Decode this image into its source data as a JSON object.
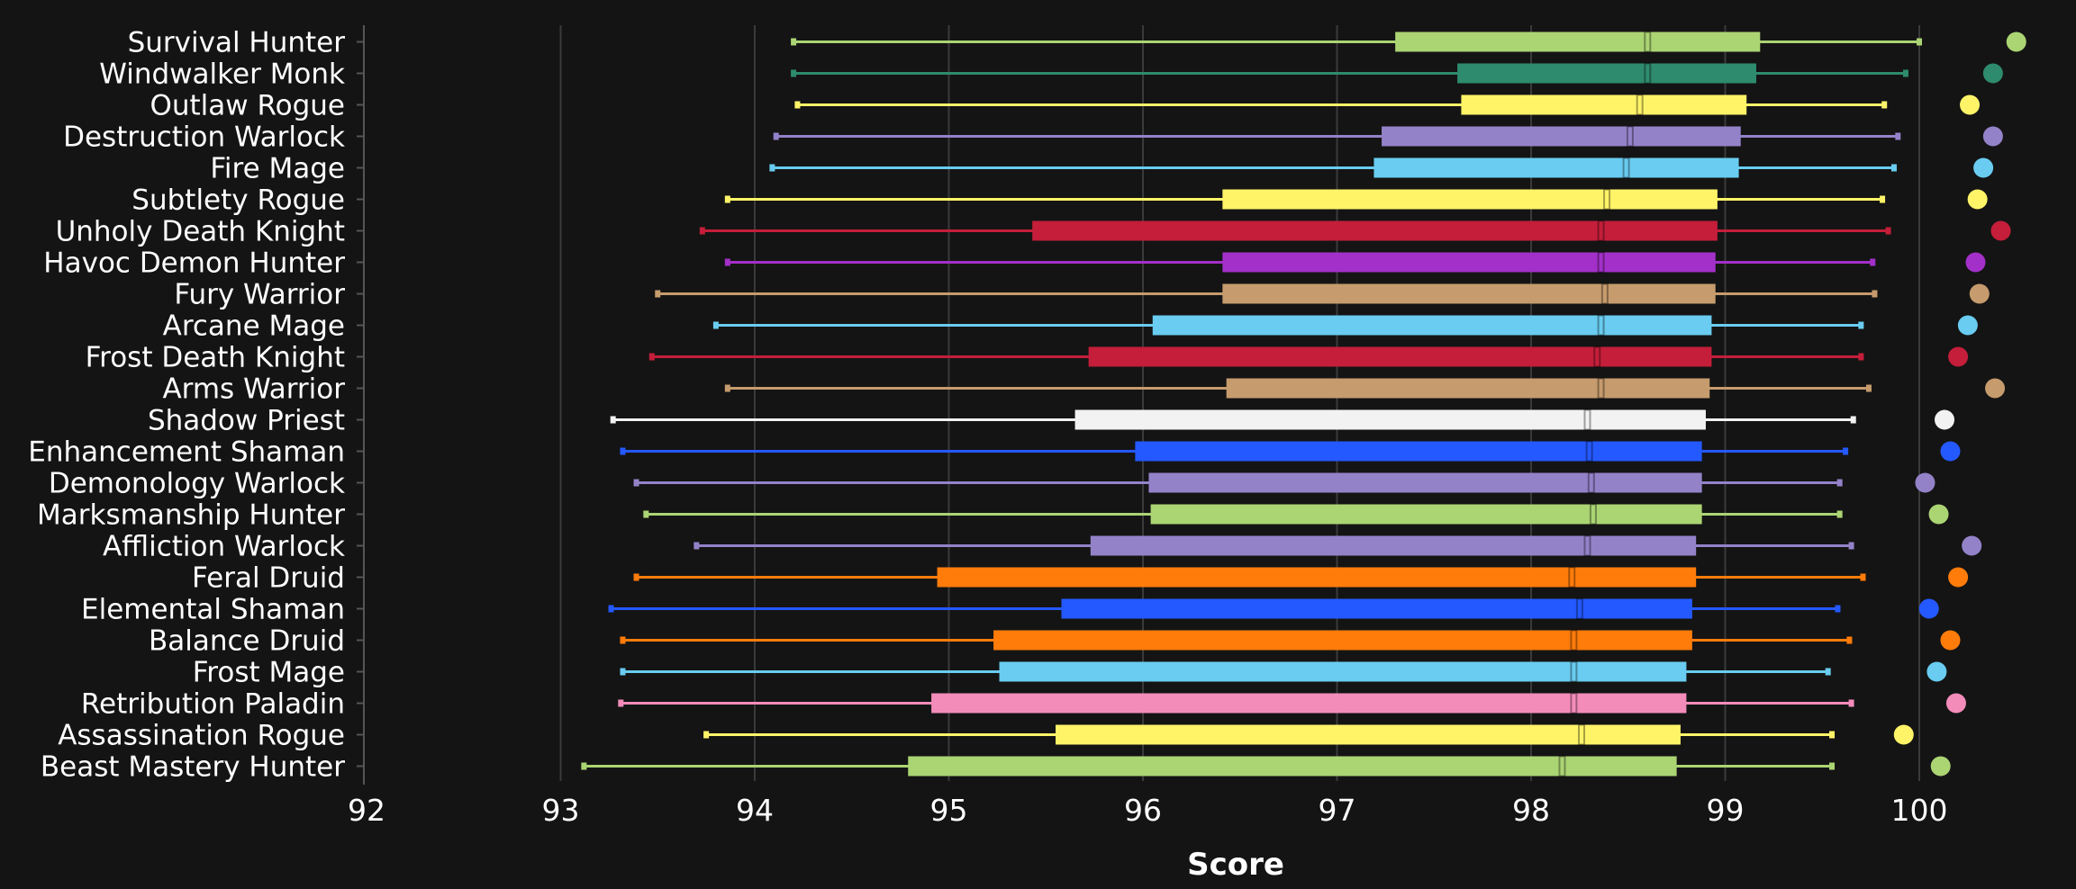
{
  "chart_data": {
    "type": "boxplot",
    "title": "",
    "xlabel": "Score",
    "ylabel": "",
    "xlim": [
      92,
      100.9
    ],
    "x_ticks": [
      "92",
      "93",
      "94",
      "95",
      "96",
      "97",
      "98",
      "99",
      "100"
    ],
    "grid": "vertical",
    "series": [
      {
        "name": "Survival Hunter",
        "color": "#abd473",
        "min": 94.2,
        "q1": 97.3,
        "median": 98.6,
        "q3": 99.18,
        "max": 100.0,
        "point": 100.5
      },
      {
        "name": "Windwalker Monk",
        "color": "#2e8b6e",
        "min": 94.2,
        "q1": 97.62,
        "median": 98.6,
        "q3": 99.16,
        "max": 99.93,
        "point": 100.38
      },
      {
        "name": "Outlaw Rogue",
        "color": "#fff468",
        "min": 94.22,
        "q1": 97.64,
        "median": 98.56,
        "q3": 99.11,
        "max": 99.82,
        "point": 100.26
      },
      {
        "name": "Destruction Warlock",
        "color": "#9482c9",
        "min": 94.11,
        "q1": 97.23,
        "median": 98.51,
        "q3": 99.08,
        "max": 99.89,
        "point": 100.38
      },
      {
        "name": "Fire Mage",
        "color": "#69ccf0",
        "min": 94.09,
        "q1": 97.19,
        "median": 98.49,
        "q3": 99.07,
        "max": 99.87,
        "point": 100.33
      },
      {
        "name": "Subtlety Rogue",
        "color": "#fff468",
        "min": 93.86,
        "q1": 96.41,
        "median": 98.39,
        "q3": 98.96,
        "max": 99.81,
        "point": 100.3
      },
      {
        "name": "Unholy Death Knight",
        "color": "#c41e3a",
        "min": 93.73,
        "q1": 95.43,
        "median": 98.36,
        "q3": 98.96,
        "max": 99.84,
        "point": 100.42
      },
      {
        "name": "Havoc Demon Hunter",
        "color": "#a330c9",
        "min": 93.86,
        "q1": 96.41,
        "median": 98.36,
        "q3": 98.95,
        "max": 99.76,
        "point": 100.29
      },
      {
        "name": "Fury Warrior",
        "color": "#c69b6d",
        "min": 93.5,
        "q1": 96.41,
        "median": 98.38,
        "q3": 98.95,
        "max": 99.77,
        "point": 100.31
      },
      {
        "name": "Arcane Mage",
        "color": "#69ccf0",
        "min": 93.8,
        "q1": 96.05,
        "median": 98.36,
        "q3": 98.93,
        "max": 99.7,
        "point": 100.25
      },
      {
        "name": "Frost Death Knight",
        "color": "#c41e3a",
        "min": 93.47,
        "q1": 95.72,
        "median": 98.34,
        "q3": 98.93,
        "max": 99.7,
        "point": 100.2
      },
      {
        "name": "Arms Warrior",
        "color": "#c69b6d",
        "min": 93.86,
        "q1": 96.43,
        "median": 98.36,
        "q3": 98.92,
        "max": 99.74,
        "point": 100.39
      },
      {
        "name": "Shadow Priest",
        "color": "#f2f2f2",
        "min": 93.27,
        "q1": 95.65,
        "median": 98.29,
        "q3": 98.9,
        "max": 99.66,
        "point": 100.13
      },
      {
        "name": "Enhancement Shaman",
        "color": "#2459ff",
        "min": 93.32,
        "q1": 95.96,
        "median": 98.3,
        "q3": 98.88,
        "max": 99.62,
        "point": 100.16
      },
      {
        "name": "Demonology Warlock",
        "color": "#9482c9",
        "min": 93.39,
        "q1": 96.03,
        "median": 98.31,
        "q3": 98.88,
        "max": 99.59,
        "point": 100.03
      },
      {
        "name": "Marksmanship Hunter",
        "color": "#abd473",
        "min": 93.44,
        "q1": 96.04,
        "median": 98.32,
        "q3": 98.88,
        "max": 99.59,
        "point": 100.1
      },
      {
        "name": "Affliction Warlock",
        "color": "#9482c9",
        "min": 93.7,
        "q1": 95.73,
        "median": 98.29,
        "q3": 98.85,
        "max": 99.65,
        "point": 100.27
      },
      {
        "name": "Feral Druid",
        "color": "#ff7c0a",
        "min": 93.39,
        "q1": 94.94,
        "median": 98.21,
        "q3": 98.85,
        "max": 99.71,
        "point": 100.2
      },
      {
        "name": "Elemental Shaman",
        "color": "#2459ff",
        "min": 93.26,
        "q1": 95.58,
        "median": 98.25,
        "q3": 98.83,
        "max": 99.58,
        "point": 100.05
      },
      {
        "name": "Balance Druid",
        "color": "#ff7c0a",
        "min": 93.32,
        "q1": 95.23,
        "median": 98.22,
        "q3": 98.83,
        "max": 99.64,
        "point": 100.16
      },
      {
        "name": "Frost Mage",
        "color": "#69ccf0",
        "min": 93.32,
        "q1": 95.26,
        "median": 98.22,
        "q3": 98.8,
        "max": 99.53,
        "point": 100.09
      },
      {
        "name": "Retribution Paladin",
        "color": "#f48cba",
        "min": 93.31,
        "q1": 94.91,
        "median": 98.22,
        "q3": 98.8,
        "max": 99.65,
        "point": 100.19
      },
      {
        "name": "Assassination Rogue",
        "color": "#fff468",
        "min": 93.75,
        "q1": 95.55,
        "median": 98.26,
        "q3": 98.77,
        "max": 99.55,
        "point": 99.92
      },
      {
        "name": "Beast Mastery Hunter",
        "color": "#abd473",
        "min": 93.12,
        "q1": 94.79,
        "median": 98.16,
        "q3": 98.75,
        "max": 99.55,
        "point": 100.11
      }
    ]
  }
}
